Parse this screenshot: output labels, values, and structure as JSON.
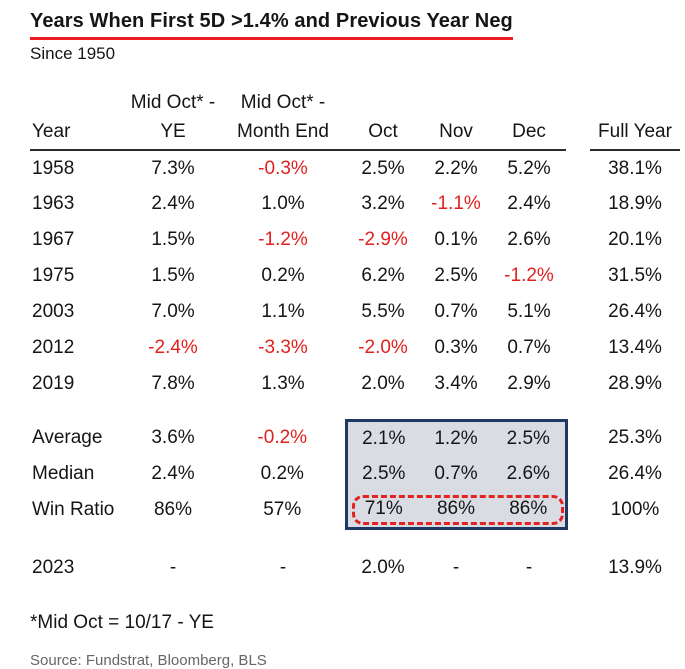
{
  "colors": {
    "negative_red": "#e2201f",
    "underline_red": "#ee1c25",
    "highlight_bg": "#d9dde3",
    "highlight_border": "#1e3a63",
    "dashed_red": "#e2231f",
    "text": "#151515",
    "source_gray": "#666666"
  },
  "chart_data": {
    "type": "table",
    "title": "Years When First 5D >1.4% and Previous Year Neg",
    "subtitle": "Since 1950",
    "column_group_headers": [
      "",
      "Mid Oct* -",
      "Mid Oct* -",
      "",
      "",
      "",
      ""
    ],
    "columns": [
      "Year",
      "YE",
      "Month End",
      "Oct",
      "Nov",
      "Dec",
      "Full Year"
    ],
    "rows": [
      [
        "1958",
        "7.3%",
        "-0.3%",
        "2.5%",
        "2.2%",
        "5.2%",
        "38.1%"
      ],
      [
        "1963",
        "2.4%",
        "1.0%",
        "3.2%",
        "-1.1%",
        "2.4%",
        "18.9%"
      ],
      [
        "1967",
        "1.5%",
        "-1.2%",
        "-2.9%",
        "0.1%",
        "2.6%",
        "20.1%"
      ],
      [
        "1975",
        "1.5%",
        "0.2%",
        "6.2%",
        "2.5%",
        "-1.2%",
        "31.5%"
      ],
      [
        "2003",
        "7.0%",
        "1.1%",
        "5.5%",
        "0.7%",
        "5.1%",
        "26.4%"
      ],
      [
        "2012",
        "-2.4%",
        "-3.3%",
        "-2.0%",
        "0.3%",
        "0.7%",
        "13.4%"
      ],
      [
        "2019",
        "7.8%",
        "1.3%",
        "2.0%",
        "3.4%",
        "2.9%",
        "28.9%"
      ]
    ],
    "summary_rows": [
      [
        "Average",
        "3.6%",
        "-0.2%",
        "2.1%",
        "1.2%",
        "2.5%",
        "25.3%"
      ],
      [
        "Median",
        "2.4%",
        "0.2%",
        "2.5%",
        "0.7%",
        "2.6%",
        "26.4%"
      ],
      [
        "Win Ratio",
        "86%",
        "57%",
        "71%",
        "86%",
        "86%",
        "100%"
      ]
    ],
    "current_row": [
      "2023",
      "-",
      "-",
      "2.0%",
      "-",
      "-",
      "13.9%"
    ],
    "highlight": {
      "box_rows": [
        "Average",
        "Median",
        "Win Ratio"
      ],
      "box_columns": [
        "Oct",
        "Nov",
        "Dec"
      ],
      "dashed_values": [
        "71%",
        "86%",
        "86%"
      ]
    },
    "footnote": "*Mid Oct = 10/17 - YE",
    "source": "Source: Fundstrat, Bloomberg, BLS"
  }
}
